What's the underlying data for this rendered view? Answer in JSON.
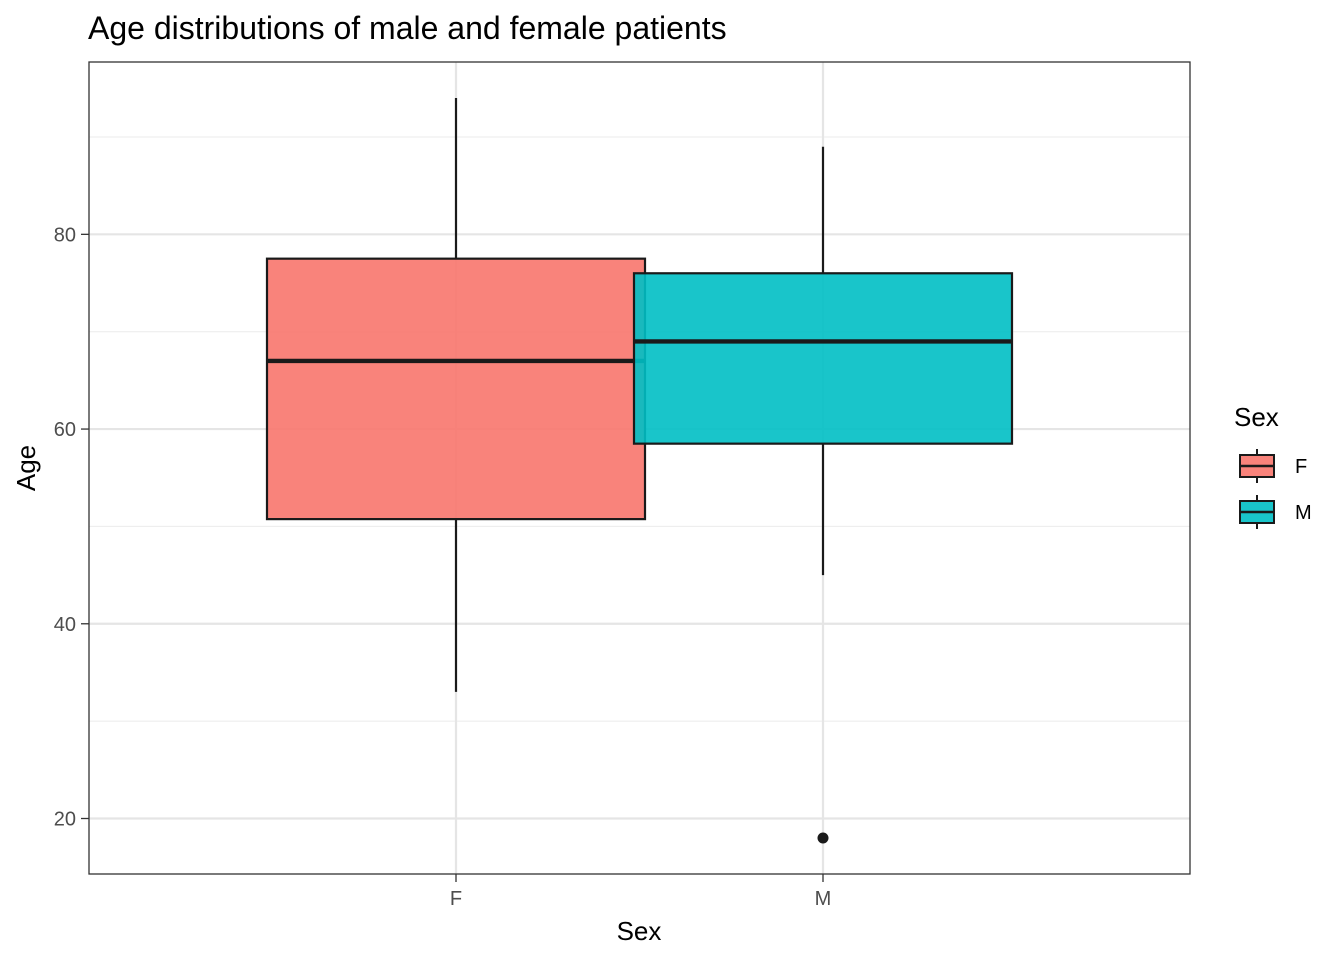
{
  "chart_data": {
    "type": "boxplot",
    "title": "Age distributions of male and female patients",
    "xlabel": "Sex",
    "ylabel": "Age",
    "categories": [
      "F",
      "M"
    ],
    "ylim": [
      14.3,
      97.7
    ],
    "yticks": [
      20,
      40,
      60,
      80
    ],
    "grid": true,
    "boxes": [
      {
        "category": "F",
        "color": "#F8766D",
        "whisker_low": 33,
        "q1": 50.75,
        "median": 67,
        "q3": 77.5,
        "whisker_high": 94,
        "outliers": []
      },
      {
        "category": "M",
        "color": "#00BFC4",
        "whisker_low": 45,
        "q1": 58.5,
        "median": 69,
        "q3": 76,
        "whisker_high": 89,
        "outliers": [
          18
        ]
      }
    ],
    "legend": {
      "title": "Sex",
      "position": "right",
      "entries": [
        {
          "label": "F",
          "color": "#F8766D"
        },
        {
          "label": "M",
          "color": "#00BFC4"
        }
      ]
    }
  }
}
